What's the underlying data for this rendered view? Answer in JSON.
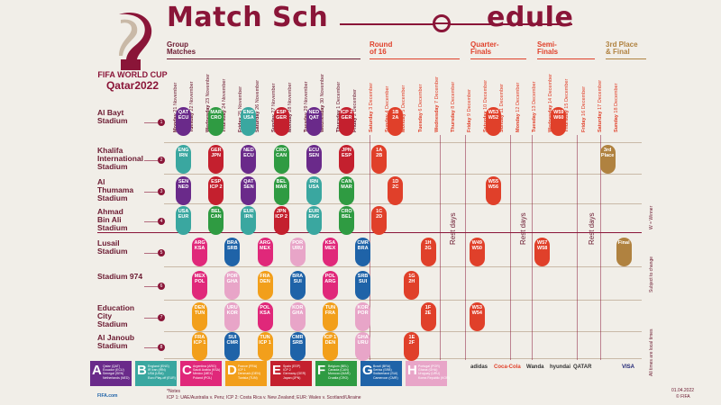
{
  "title": {
    "part1": "Match Sch",
    "part2": "edule"
  },
  "brand": {
    "line1": "FIFA WORLD CUP",
    "line2": "Qatar2022"
  },
  "phases": [
    {
      "label": "Group\nMatches",
      "color": "#6b1a31"
    },
    {
      "label": "Round\nof 16",
      "color": "#e0402a"
    },
    {
      "label": "Quarter-\nFinals",
      "color": "#e0402a"
    },
    {
      "label": "Semi-\nFinals",
      "color": "#e0402a"
    },
    {
      "label": "3rd Place\n& Final",
      "color": "#b08240"
    }
  ],
  "dates": [
    [
      "Monday",
      "21 November"
    ],
    [
      "Tuesday",
      "22 November"
    ],
    [
      "Wednesday",
      "23 November"
    ],
    [
      "Thursday",
      "24 November"
    ],
    [
      "Friday",
      "25 November"
    ],
    [
      "Saturday",
      "26 November"
    ],
    [
      "Sunday",
      "27 November"
    ],
    [
      "Monday",
      "28 November"
    ],
    [
      "Tuesday",
      "29 November"
    ],
    [
      "Wednesday",
      "30 November"
    ],
    [
      "Thursday",
      "1 December"
    ],
    [
      "Friday",
      "2 December"
    ],
    [
      "Saturday",
      "3 December"
    ],
    [
      "Sunday",
      "4 December"
    ],
    [
      "Monday",
      "5 December"
    ],
    [
      "Tuesday",
      "6 December"
    ],
    [
      "Wednesday",
      "7 December"
    ],
    [
      "Thursday",
      "8 December"
    ],
    [
      "Friday",
      "9 December"
    ],
    [
      "Saturday",
      "10 December"
    ],
    [
      "Sunday",
      "11 December"
    ],
    [
      "Monday",
      "12 December"
    ],
    [
      "Tuesday",
      "13 December"
    ],
    [
      "Wednesday",
      "14 December"
    ],
    [
      "Thursday",
      "15 December"
    ],
    [
      "Friday",
      "16 December"
    ],
    [
      "Saturday",
      "17 December"
    ],
    [
      "Sunday",
      "18 December"
    ]
  ],
  "stadiums": [
    {
      "name": "Al Bayt\nStadium",
      "num": "1"
    },
    {
      "name": "Khalifa\nInternational\nStadium",
      "num": "2"
    },
    {
      "name": "Al\nThumama\nStadium",
      "num": "3"
    },
    {
      "name": "Ahmad\nBin Ali\nStadium",
      "num": "4"
    },
    {
      "name": "Lusail\nStadium",
      "num": "5"
    },
    {
      "name": "Stadium 974",
      "num": "6"
    },
    {
      "name": "Education\nCity\nStadium",
      "num": "7"
    },
    {
      "name": "Al Janoub\nStadium",
      "num": "8"
    }
  ],
  "rest_days": [
    "Rest days",
    "Rest days",
    "Rest days",
    "Rest days"
  ],
  "side_notes": [
    "W = Winner",
    "Subject to change",
    "All times are local times"
  ],
  "matches": [
    {
      "row": 0,
      "col": 0,
      "t1": "QAT",
      "t2": "ECU",
      "c": "#6a2a8a"
    },
    {
      "row": 0,
      "col": 2,
      "t1": "MAR",
      "t2": "CRO",
      "c": "#2f9b42"
    },
    {
      "row": 0,
      "col": 4,
      "t1": "ENG",
      "t2": "USA",
      "c": "#3aa7a0"
    },
    {
      "row": 0,
      "col": 6,
      "t1": "ESP",
      "t2": "GER",
      "c": "#c4202e"
    },
    {
      "row": 0,
      "col": 8,
      "t1": "NED",
      "t2": "QAT",
      "c": "#6a2a8a"
    },
    {
      "row": 0,
      "col": 10,
      "t1": "ICP 2",
      "t2": "GER",
      "c": "#c4202e"
    },
    {
      "row": 0,
      "col": 13,
      "t1": "1B",
      "t2": "2A",
      "c": "#e0402a"
    },
    {
      "row": 0,
      "col": 19,
      "t1": "W53",
      "t2": "W52",
      "c": "#e0402a"
    },
    {
      "row": 0,
      "col": 23,
      "t1": "W59",
      "t2": "W60",
      "c": "#e0402a"
    },
    {
      "row": 1,
      "col": 0,
      "t1": "ENG",
      "t2": "IRN",
      "c": "#3aa7a0"
    },
    {
      "row": 1,
      "col": 2,
      "t1": "GER",
      "t2": "JPN",
      "c": "#c4202e"
    },
    {
      "row": 1,
      "col": 4,
      "t1": "NED",
      "t2": "ECU",
      "c": "#6a2a8a"
    },
    {
      "row": 1,
      "col": 6,
      "t1": "CRO",
      "t2": "CAN",
      "c": "#2f9b42"
    },
    {
      "row": 1,
      "col": 8,
      "t1": "ECU",
      "t2": "SEN",
      "c": "#6a2a8a"
    },
    {
      "row": 1,
      "col": 10,
      "t1": "JPN",
      "t2": "ESP",
      "c": "#c4202e"
    },
    {
      "row": 1,
      "col": 12,
      "t1": "1A",
      "t2": "2B",
      "c": "#e0402a"
    },
    {
      "row": 1,
      "col": 26,
      "t1": "3rd",
      "t2": "Place",
      "c": "#b08240"
    },
    {
      "row": 2,
      "col": 0,
      "t1": "SEN",
      "t2": "NED",
      "c": "#6a2a8a"
    },
    {
      "row": 2,
      "col": 2,
      "t1": "ESP",
      "t2": "ICP 2",
      "c": "#c4202e"
    },
    {
      "row": 2,
      "col": 4,
      "t1": "QAT",
      "t2": "SEN",
      "c": "#6a2a8a"
    },
    {
      "row": 2,
      "col": 6,
      "t1": "BEL",
      "t2": "MAR",
      "c": "#2f9b42"
    },
    {
      "row": 2,
      "col": 8,
      "t1": "IRN",
      "t2": "USA",
      "c": "#3aa7a0"
    },
    {
      "row": 2,
      "col": 10,
      "t1": "CAN",
      "t2": "MAR",
      "c": "#2f9b42"
    },
    {
      "row": 2,
      "col": 13,
      "t1": "1D",
      "t2": "2C",
      "c": "#e0402a"
    },
    {
      "row": 2,
      "col": 19,
      "t1": "W55",
      "t2": "W56",
      "c": "#e0402a"
    },
    {
      "row": 3,
      "col": 0,
      "t1": "USA",
      "t2": "EUR",
      "c": "#3aa7a0"
    },
    {
      "row": 3,
      "col": 2,
      "t1": "BEL",
      "t2": "CAN",
      "c": "#2f9b42"
    },
    {
      "row": 3,
      "col": 4,
      "t1": "EUR",
      "t2": "IRN",
      "c": "#3aa7a0"
    },
    {
      "row": 3,
      "col": 6,
      "t1": "JPN",
      "t2": "ICP 2",
      "c": "#c4202e"
    },
    {
      "row": 3,
      "col": 8,
      "t1": "EUR",
      "t2": "ENG",
      "c": "#3aa7a0"
    },
    {
      "row": 3,
      "col": 10,
      "t1": "CRO",
      "t2": "BEL",
      "c": "#2f9b42"
    },
    {
      "row": 3,
      "col": 12,
      "t1": "1C",
      "t2": "2D",
      "c": "#e0402a"
    },
    {
      "row": 4,
      "col": 1,
      "t1": "ARG",
      "t2": "KSA",
      "c": "#e0287a"
    },
    {
      "row": 4,
      "col": 3,
      "t1": "BRA",
      "t2": "SRB",
      "c": "#1f63a8"
    },
    {
      "row": 4,
      "col": 5,
      "t1": "ARG",
      "t2": "MEX",
      "c": "#e0287a"
    },
    {
      "row": 4,
      "col": 7,
      "t1": "POR",
      "t2": "URU",
      "c": "#e8a5c8"
    },
    {
      "row": 4,
      "col": 9,
      "t1": "KSA",
      "t2": "MEX",
      "c": "#e0287a"
    },
    {
      "row": 4,
      "col": 11,
      "t1": "CMR",
      "t2": "BRA",
      "c": "#1f63a8"
    },
    {
      "row": 4,
      "col": 15,
      "t1": "1H",
      "t2": "2G",
      "c": "#e0402a"
    },
    {
      "row": 4,
      "col": 18,
      "t1": "W49",
      "t2": "W50",
      "c": "#e0402a"
    },
    {
      "row": 4,
      "col": 22,
      "t1": "W57",
      "t2": "W58",
      "c": "#e0402a"
    },
    {
      "row": 4,
      "col": 27,
      "t1": "Final",
      "t2": "",
      "c": "#b08240"
    },
    {
      "row": 5,
      "col": 1,
      "t1": "MEX",
      "t2": "POL",
      "c": "#e0287a"
    },
    {
      "row": 5,
      "col": 3,
      "t1": "POR",
      "t2": "GHA",
      "c": "#e8a5c8"
    },
    {
      "row": 5,
      "col": 5,
      "t1": "FRA",
      "t2": "DEN",
      "c": "#f29f1b"
    },
    {
      "row": 5,
      "col": 7,
      "t1": "BRA",
      "t2": "SUI",
      "c": "#1f63a8"
    },
    {
      "row": 5,
      "col": 9,
      "t1": "POL",
      "t2": "ARG",
      "c": "#e0287a"
    },
    {
      "row": 5,
      "col": 11,
      "t1": "SRB",
      "t2": "SUI",
      "c": "#1f63a8"
    },
    {
      "row": 5,
      "col": 14,
      "t1": "1G",
      "t2": "2H",
      "c": "#e0402a"
    },
    {
      "row": 6,
      "col": 1,
      "t1": "DEN",
      "t2": "TUN",
      "c": "#f29f1b"
    },
    {
      "row": 6,
      "col": 3,
      "t1": "URU",
      "t2": "KOR",
      "c": "#e8a5c8"
    },
    {
      "row": 6,
      "col": 5,
      "t1": "POL",
      "t2": "KSA",
      "c": "#e0287a"
    },
    {
      "row": 6,
      "col": 7,
      "t1": "KOR",
      "t2": "GHA",
      "c": "#e8a5c8"
    },
    {
      "row": 6,
      "col": 9,
      "t1": "TUN",
      "t2": "FRA",
      "c": "#f29f1b"
    },
    {
      "row": 6,
      "col": 11,
      "t1": "KOR",
      "t2": "POR",
      "c": "#e8a5c8"
    },
    {
      "row": 6,
      "col": 15,
      "t1": "1F",
      "t2": "2E",
      "c": "#e0402a"
    },
    {
      "row": 6,
      "col": 18,
      "t1": "W53",
      "t2": "W54",
      "c": "#e0402a"
    },
    {
      "row": 7,
      "col": 1,
      "t1": "FRA",
      "t2": "ICP 1",
      "c": "#f29f1b"
    },
    {
      "row": 7,
      "col": 3,
      "t1": "SUI",
      "t2": "CMR",
      "c": "#1f63a8"
    },
    {
      "row": 7,
      "col": 5,
      "t1": "TUN",
      "t2": "ICP 1",
      "c": "#f29f1b"
    },
    {
      "row": 7,
      "col": 7,
      "t1": "CMR",
      "t2": "SRB",
      "c": "#1f63a8"
    },
    {
      "row": 7,
      "col": 9,
      "t1": "ICP 1",
      "t2": "DEN",
      "c": "#f29f1b"
    },
    {
      "row": 7,
      "col": 11,
      "t1": "GHA",
      "t2": "URU",
      "c": "#e8a5c8"
    },
    {
      "row": 7,
      "col": 14,
      "t1": "1E",
      "t2": "2F",
      "c": "#e0402a"
    }
  ],
  "groups": [
    {
      "letter": "A",
      "color": "#6a2a8a",
      "teams": "Qatar (QAT)\nEcuador (ECU)\nSenegal (SEN)\nNetherlands (NED)"
    },
    {
      "letter": "B",
      "color": "#3aa7a0",
      "teams": "England (ENG)\nIR Iran (IRN)\nUSA (USA)\nEuro Play-off (EUR)"
    },
    {
      "letter": "C",
      "color": "#e0287a",
      "teams": "Argentina (ARG)\nSaudi Arabia (KSA)\nMexico (MEX)\nPoland (POL)"
    },
    {
      "letter": "D",
      "color": "#f29f1b",
      "teams": "France (FRA)\nICP 1\nDenmark (DEN)\nTunisia (TUN)"
    },
    {
      "letter": "E",
      "color": "#c4202e",
      "teams": "Spain (ESP)\nICP 2\nGermany (GER)\nJapan (JPN)"
    },
    {
      "letter": "F",
      "color": "#2f9b42",
      "teams": "Belgium (BEL)\nCanada (CAN)\nMorocco (MAR)\nCroatia (CRO)"
    },
    {
      "letter": "G",
      "color": "#1f63a8",
      "teams": "Brazil (BRA)\nSerbia (SRB)\nSwitzerland (SUI)\nCameroon (CMR)"
    },
    {
      "letter": "H",
      "color": "#e8a5c8",
      "teams": "Portugal (POR)\nGhana (GHA)\nUruguay (URU)\nKorea Republic (KOR)"
    }
  ],
  "notes": "ICP 1: UAE/Australia v. Peru; ICP 2: Costa Rica v. New Zealand; EUR: Wales v. Scotland/Ukraine",
  "notes_label": "*Notes",
  "footer_left": "FIFA.com",
  "date_stamp": "01.04.2022",
  "copyright": "© FIFA",
  "sponsors": [
    "adidas",
    "Coca-Cola",
    "Wanda",
    "hyundai",
    "QATAR",
    "VISA"
  ]
}
